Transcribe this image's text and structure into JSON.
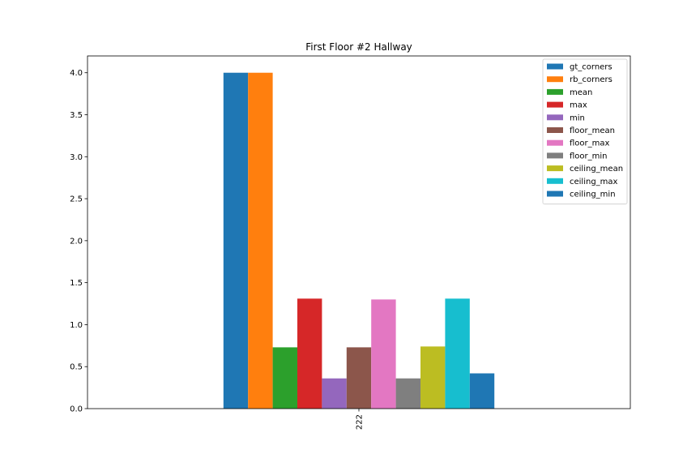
{
  "chart_data": {
    "type": "bar",
    "title": "First Floor #2 Hallway",
    "xlabel": "",
    "ylabel": "",
    "categories": [
      "222"
    ],
    "ylim": [
      0,
      4.2
    ],
    "yticks": [
      "0.0",
      "0.5",
      "1.0",
      "1.5",
      "2.0",
      "2.5",
      "3.0",
      "3.5",
      "4.0"
    ],
    "grid": false,
    "legend_position": "top-right",
    "series": [
      {
        "name": "gt_corners",
        "color": "#1f77b4",
        "values": [
          4.0
        ]
      },
      {
        "name": "rb_corners",
        "color": "#ff7f0e",
        "values": [
          4.0
        ]
      },
      {
        "name": "mean",
        "color": "#2ca02c",
        "values": [
          0.73
        ]
      },
      {
        "name": "max",
        "color": "#d62728",
        "values": [
          1.31
        ]
      },
      {
        "name": "min",
        "color": "#9467bd",
        "values": [
          0.36
        ]
      },
      {
        "name": "floor_mean",
        "color": "#8c564b",
        "values": [
          0.73
        ]
      },
      {
        "name": "floor_max",
        "color": "#e377c2",
        "values": [
          1.3
        ]
      },
      {
        "name": "floor_min",
        "color": "#7f7f7f",
        "values": [
          0.36
        ]
      },
      {
        "name": "ceiling_mean",
        "color": "#bcbd22",
        "values": [
          0.74
        ]
      },
      {
        "name": "ceiling_max",
        "color": "#17becf",
        "values": [
          1.31
        ]
      },
      {
        "name": "ceiling_min",
        "color": "#1f77b4",
        "values": [
          0.42
        ]
      }
    ]
  }
}
